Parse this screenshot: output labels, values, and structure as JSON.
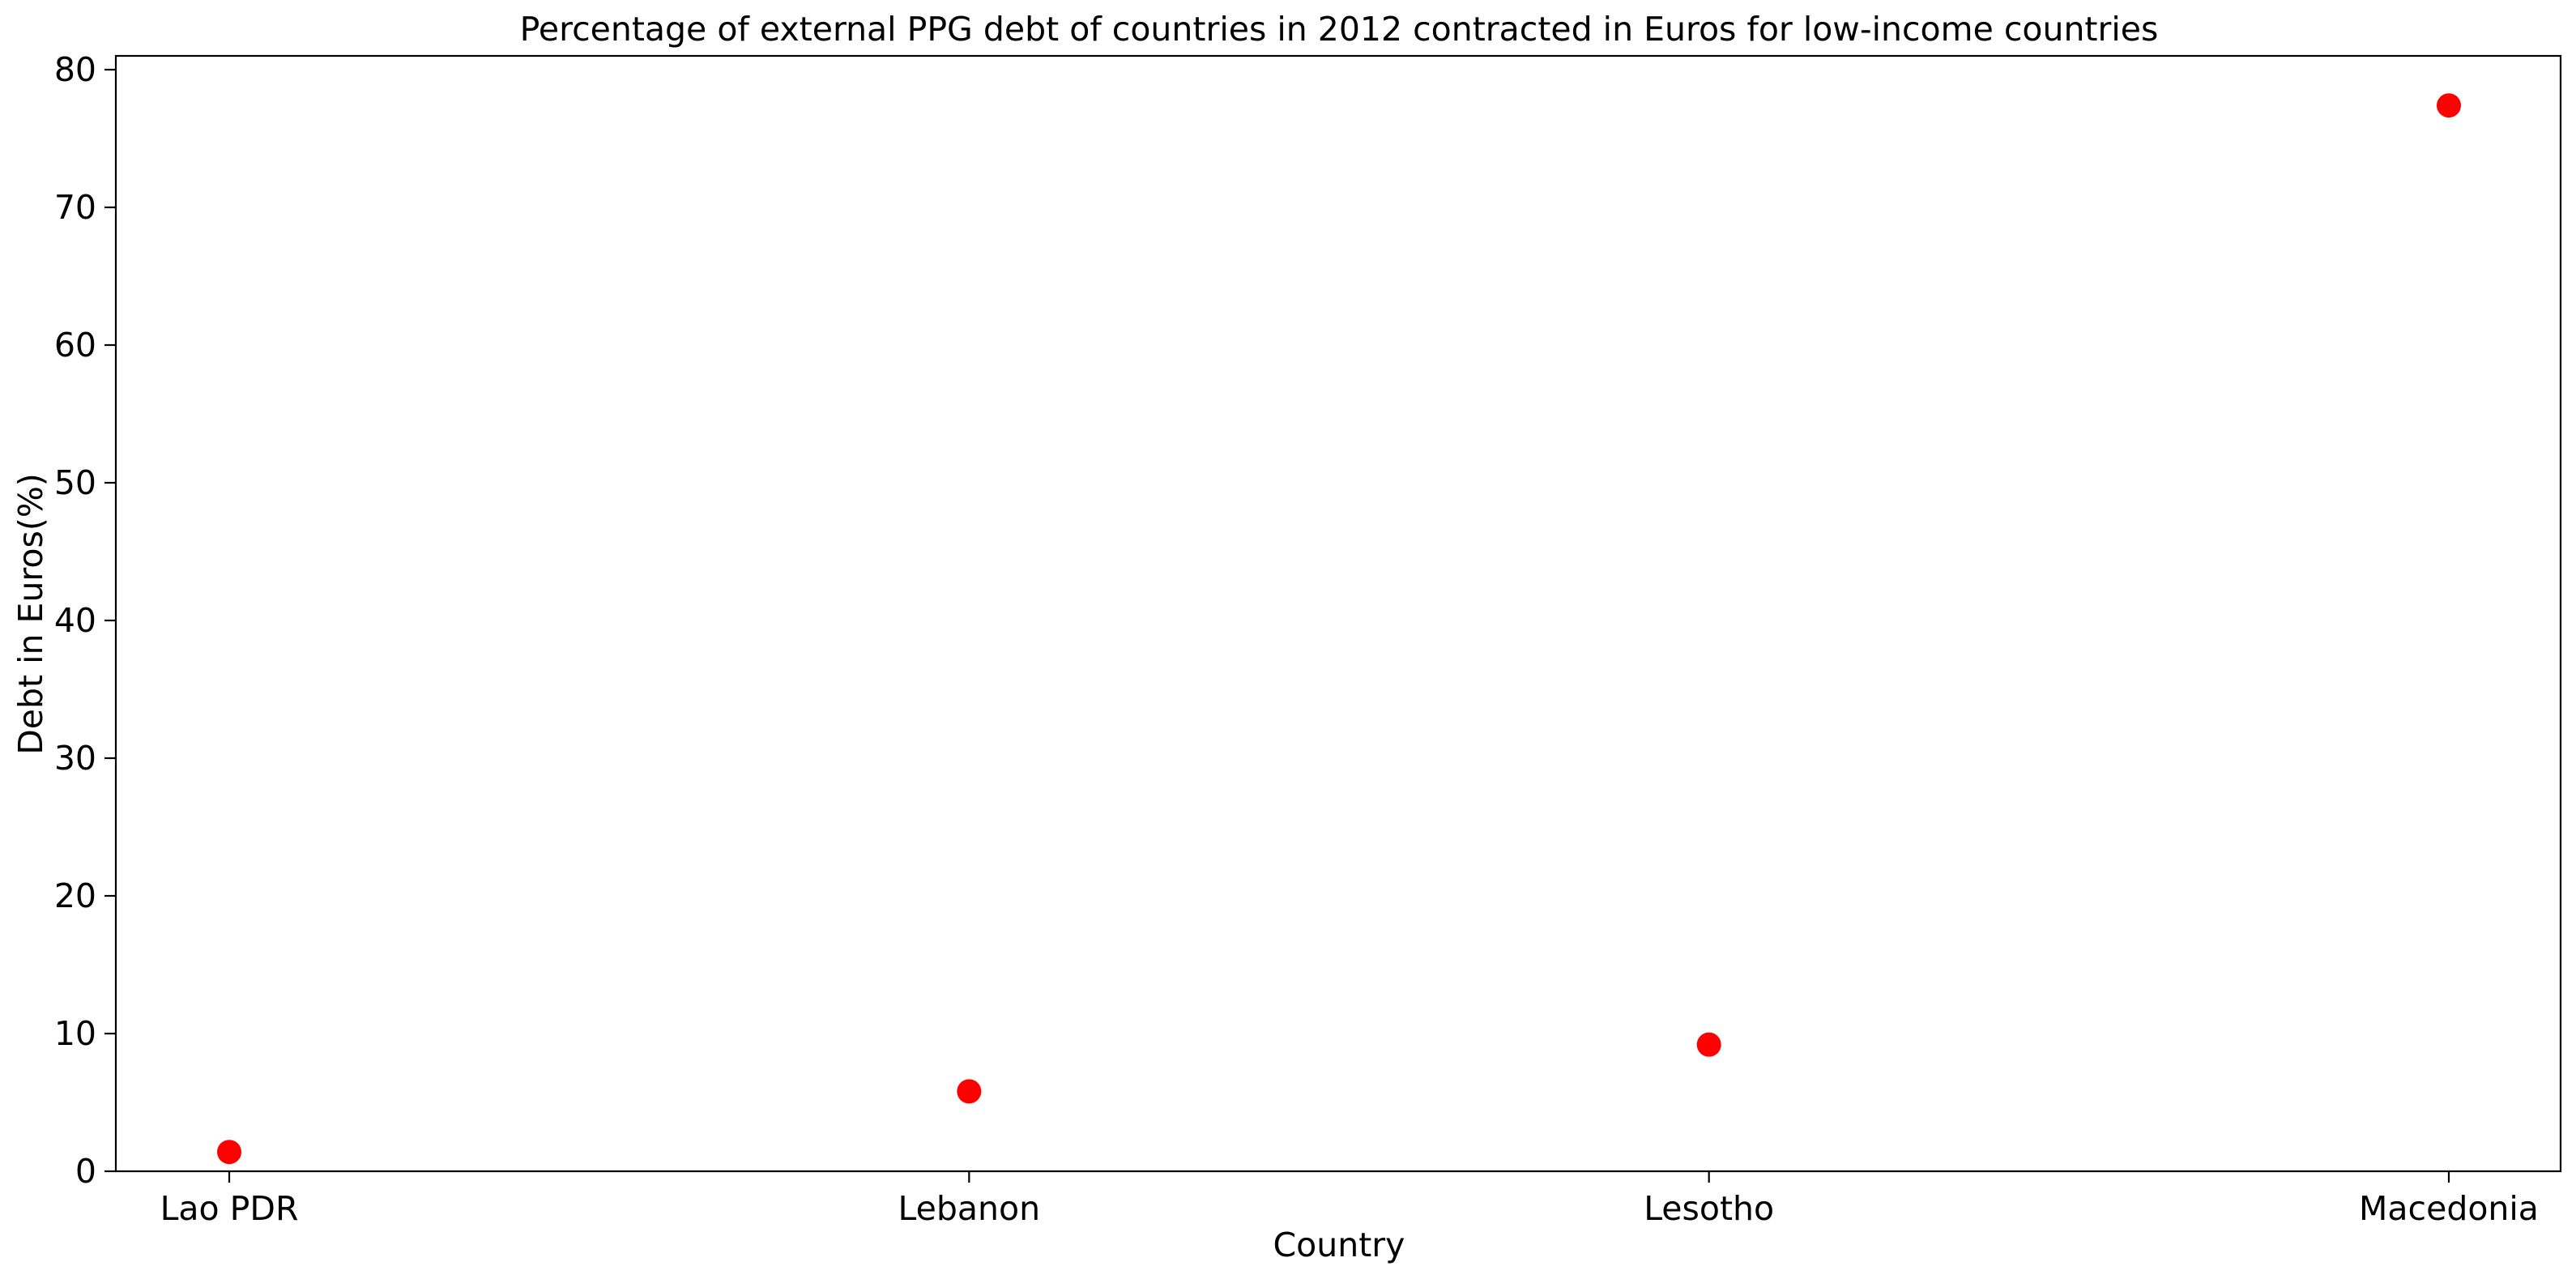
{
  "colors": {
    "marker": "#ff0000",
    "axes": "#000000",
    "background": "#ffffff"
  },
  "chart_data": {
    "type": "scatter",
    "title": "Percentage of external PPG debt of countries in 2012 contracted in Euros for low-income countries",
    "xlabel": "Country",
    "ylabel": "Debt in Euros(%)",
    "categories": [
      "Lao PDR",
      "Lebanon",
      "Lesotho",
      "Macedonia"
    ],
    "series": [
      {
        "values": [
          1.4,
          5.8,
          9.2,
          77.4
        ]
      }
    ],
    "ylim": [
      0,
      81
    ],
    "yticks": [
      0,
      10,
      20,
      30,
      40,
      50,
      60,
      70,
      80
    ],
    "grid": false,
    "legend": false
  }
}
